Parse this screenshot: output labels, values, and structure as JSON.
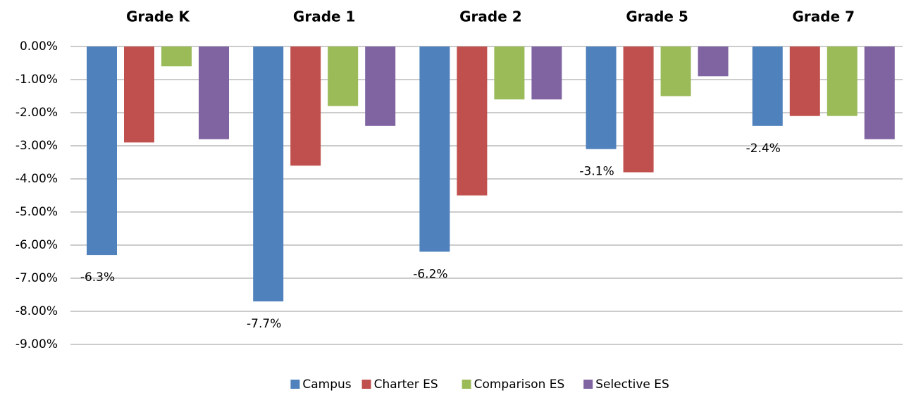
{
  "chart_data": {
    "type": "bar",
    "categories": [
      "Grade K",
      "Grade 1",
      "Grade 2",
      "Grade 5",
      "Grade 7"
    ],
    "series": [
      {
        "name": "Campus",
        "color": "#4f81bd",
        "values": [
          -6.3,
          -7.7,
          -6.2,
          -3.1,
          -2.4
        ],
        "value_labels": [
          "-6.3%",
          "-7.7%",
          "-6.2%",
          "-3.1%",
          "-2.4%"
        ]
      },
      {
        "name": "Charter ES",
        "color": "#c0504d",
        "values": [
          -2.9,
          -3.6,
          -4.5,
          -3.8,
          -2.1
        ]
      },
      {
        "name": "Comparison ES",
        "color": "#9bbb59",
        "values": [
          -0.6,
          -1.8,
          -1.6,
          -1.5,
          -2.1
        ]
      },
      {
        "name": "Selective ES",
        "color": "#8064a2",
        "values": [
          -2.8,
          -2.4,
          -1.6,
          -0.9,
          -2.8
        ]
      }
    ],
    "ylim": [
      -9,
      0
    ],
    "yticks": [
      {
        "value": 0,
        "label": "0.00%"
      },
      {
        "value": -1,
        "label": "-1.00%"
      },
      {
        "value": -2,
        "label": "-2.00%"
      },
      {
        "value": -3,
        "label": "-3.00%"
      },
      {
        "value": -4,
        "label": "-4.00%"
      },
      {
        "value": -5,
        "label": "-5.00%"
      },
      {
        "value": -6,
        "label": "-6.00%"
      },
      {
        "value": -7,
        "label": "-7.00%"
      },
      {
        "value": -8,
        "label": "-8.00%"
      },
      {
        "value": -9,
        "label": "-9.00%"
      }
    ],
    "grid": true,
    "legend": "bottom"
  }
}
